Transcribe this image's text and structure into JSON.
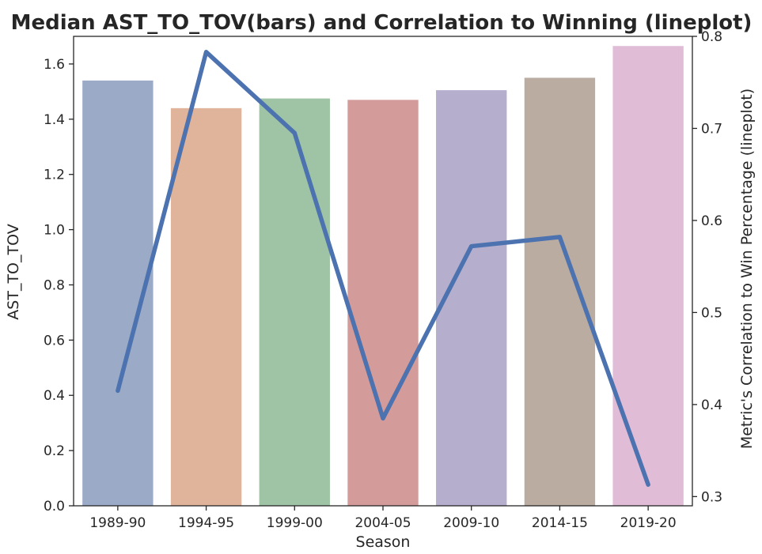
{
  "chart_data": {
    "type": "bar",
    "title": "Median AST_TO_TOV(bars) and Correlation to Winning (lineplot)",
    "xlabel": "Season",
    "ylabel": "AST_TO_TOV",
    "y2label": "Metric's Correlation to Win Percentage (lineplot)",
    "categories": [
      "1989-90",
      "1994-95",
      "1999-00",
      "2004-05",
      "2009-10",
      "2014-15",
      "2019-20"
    ],
    "ylim": [
      0,
      1.7
    ],
    "y2lim": [
      0.29,
      0.8
    ],
    "yticks": [
      "0.0",
      "0.2",
      "0.4",
      "0.6",
      "0.8",
      "1.0",
      "1.2",
      "1.4",
      "1.6"
    ],
    "y2ticks": [
      "0.3",
      "0.4",
      "0.5",
      "0.6",
      "0.7",
      "0.8"
    ],
    "grid": false,
    "series": [
      {
        "kind": "bar",
        "axis": "left",
        "values": [
          1.54,
          1.44,
          1.475,
          1.47,
          1.505,
          1.55,
          1.665
        ],
        "colors": [
          "#9aaac7",
          "#e0b39b",
          "#9fc4a5",
          "#d39c9b",
          "#b5aecd",
          "#baaca1",
          "#e0bcd7"
        ]
      },
      {
        "kind": "line",
        "axis": "right",
        "values": [
          0.415,
          0.783,
          0.695,
          0.385,
          0.572,
          0.582,
          0.313
        ],
        "color": "#4c72b0"
      }
    ]
  }
}
